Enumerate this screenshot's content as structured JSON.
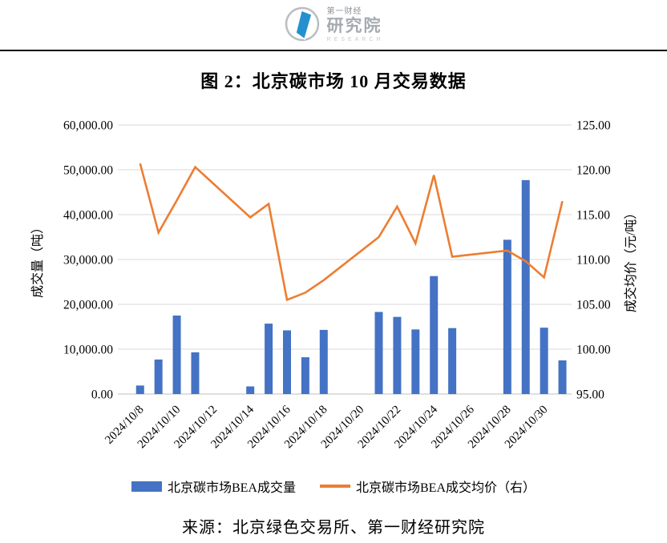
{
  "header": {
    "brand_cn_small": "第一财经",
    "brand_cn_large": "研究院",
    "brand_en": "RESEARCH"
  },
  "title": "图 2：北京碳市场 10 月交易数据",
  "source": "来源：北京绿色交易所、第一财经研究院",
  "colors": {
    "bar": "#4472C4",
    "line": "#ED7D31",
    "gridline": "#D9D9D9",
    "axis_line": "#BFBFBF",
    "logo_blue": "#2491CE",
    "logo_gray": "#B9BDC1"
  },
  "chart_data": {
    "type": "bar+line combo, dual axis",
    "title": "图 2：北京碳市场 10 月交易数据",
    "grid": "horizontal only",
    "legend_position": "bottom",
    "x_categories": [
      "2024/10/8",
      "2024/10/9",
      "2024/10/10",
      "2024/10/11",
      "2024/10/12",
      "2024/10/13",
      "2024/10/14",
      "2024/10/15",
      "2024/10/16",
      "2024/10/17",
      "2024/10/18",
      "2024/10/19",
      "2024/10/20",
      "2024/10/21",
      "2024/10/22",
      "2024/10/23",
      "2024/10/24",
      "2024/10/25",
      "2024/10/26",
      "2024/10/27",
      "2024/10/28",
      "2024/10/29",
      "2024/10/30",
      "2024/10/31"
    ],
    "x_tick_labels": [
      "2024/10/8",
      "2024/10/10",
      "2024/10/12",
      "2024/10/14",
      "2024/10/16",
      "2024/10/18",
      "2024/10/20",
      "2024/10/22",
      "2024/10/24",
      "2024/10/26",
      "2024/10/28",
      "2024/10/30"
    ],
    "left_axis": {
      "title": "成交量（吨）",
      "min": 0,
      "max": 60000,
      "step": 10000,
      "tick_labels": [
        "60,000.00",
        "50,000.00",
        "40,000.00",
        "30,000.00",
        "20,000.00",
        "10,000.00",
        "0.00"
      ]
    },
    "right_axis": {
      "title": "成交均价（元/吨）",
      "min": 95,
      "max": 125,
      "step": 5,
      "tick_labels": [
        "125.00",
        "120.00",
        "115.00",
        "110.00",
        "105.00",
        "100.00",
        "95.00"
      ]
    },
    "series": [
      {
        "name": "北京碳市场BEA成交量",
        "type": "bar",
        "axis": "left",
        "color": "#4472C4",
        "points": [
          {
            "date": "2024/10/8",
            "value": 1900
          },
          {
            "date": "2024/10/9",
            "value": 7700
          },
          {
            "date": "2024/10/10",
            "value": 17500
          },
          {
            "date": "2024/10/11",
            "value": 9300
          },
          {
            "date": "2024/10/14",
            "value": 1700
          },
          {
            "date": "2024/10/15",
            "value": 15700
          },
          {
            "date": "2024/10/16",
            "value": 14200
          },
          {
            "date": "2024/10/17",
            "value": 8200
          },
          {
            "date": "2024/10/18",
            "value": 14300
          },
          {
            "date": "2024/10/21",
            "value": 18300
          },
          {
            "date": "2024/10/22",
            "value": 17200
          },
          {
            "date": "2024/10/23",
            "value": 14400
          },
          {
            "date": "2024/10/24",
            "value": 26300
          },
          {
            "date": "2024/10/25",
            "value": 14700
          },
          {
            "date": "2024/10/28",
            "value": 34400
          },
          {
            "date": "2024/10/29",
            "value": 47700
          },
          {
            "date": "2024/10/30",
            "value": 14800
          },
          {
            "date": "2024/10/31",
            "value": 7500
          }
        ]
      },
      {
        "name": "北京碳市场BEA成交均价（右）",
        "type": "line",
        "axis": "right",
        "color": "#ED7D31",
        "points": [
          {
            "date": "2024/10/8",
            "value": 120.7
          },
          {
            "date": "2024/10/9",
            "value": 113.0
          },
          {
            "date": "2024/10/10",
            "value": 116.6
          },
          {
            "date": "2024/10/11",
            "value": 120.3
          },
          {
            "date": "2024/10/14",
            "value": 114.7
          },
          {
            "date": "2024/10/15",
            "value": 116.2
          },
          {
            "date": "2024/10/16",
            "value": 105.5
          },
          {
            "date": "2024/10/17",
            "value": 106.3
          },
          {
            "date": "2024/10/18",
            "value": 107.7
          },
          {
            "date": "2024/10/21",
            "value": 112.5
          },
          {
            "date": "2024/10/22",
            "value": 115.9
          },
          {
            "date": "2024/10/23",
            "value": 111.8
          },
          {
            "date": "2024/10/24",
            "value": 119.4
          },
          {
            "date": "2024/10/25",
            "value": 110.3
          },
          {
            "date": "2024/10/28",
            "value": 111.0
          },
          {
            "date": "2024/10/29",
            "value": 109.8
          },
          {
            "date": "2024/10/30",
            "value": 108.0
          },
          {
            "date": "2024/10/31",
            "value": 116.5
          }
        ]
      }
    ]
  }
}
